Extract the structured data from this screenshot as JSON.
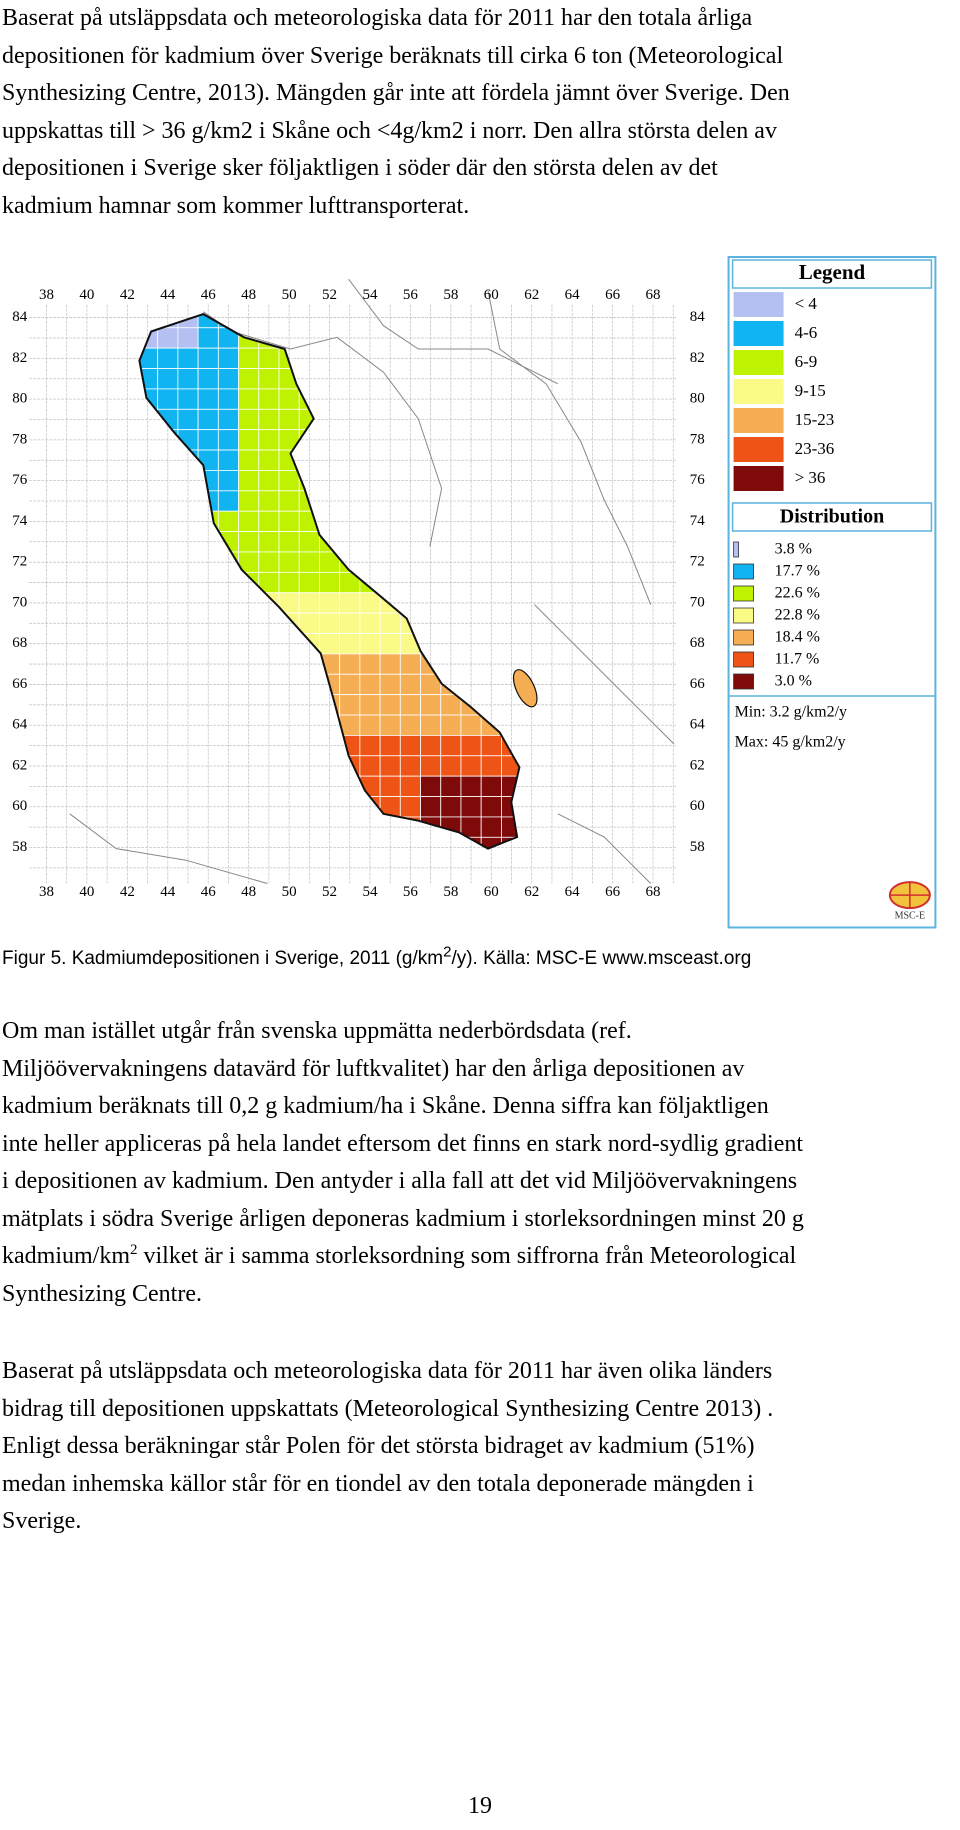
{
  "paragraphs": [
    {
      "lines": [
        "Baserat på utsläppsdata och meteorologiska data för 2011 har den totala årliga",
        "depositionen för kadmium över Sverige beräknats till cirka 6 ton (Meteorological",
        "Synthesizing Centre, 2013). Mängden går inte att fördela jämnt över Sverige. Den",
        "uppskattas till > 36 g/km2 i Skåne och <4g/km2 i norr. Den allra största delen av",
        "depositionen i Sverige sker följaktligen i söder där den största delen av det",
        "kadmium hamnar som kommer lufttransporterat."
      ]
    },
    {
      "lines": [
        "Om man istället utgår från svenska uppmätta nederbördsdata (ref.",
        "Miljöövervakningens datavärd för luftkvalitet) har den årliga depositionen av",
        "kadmium beräknats till 0,2 g kadmium/ha i Skåne. Denna siffra kan följaktligen",
        "inte heller appliceras på hela landet eftersom det finns en stark nord-sydlig gradient",
        "i depositionen av kadmium. Den antyder i alla fall att det vid Miljöövervakningens",
        "mätplats i södra Sverige årligen deponeras kadmium i storleksordningen minst 20 g",
        {
          "before": "kadmium/km",
          "sup": "2",
          "after": " vilket är i samma storleksordning som siffrorna från Meteorological"
        },
        "Synthesizing Centre."
      ]
    },
    {
      "lines": [
        "Baserat på utsläppsdata och meteorologiska data för 2011 har även olika länders",
        "bidrag till depositionen uppskattats (Meteorological Synthesizing Centre 2013) .",
        "Enligt dessa beräkningar står Polen för det största bidraget av kadmium (51%)",
        "medan inhemska källor står för en tiondel av den totala deponerade mängden i",
        "Sverige."
      ]
    }
  ],
  "figure": {
    "x_labels": [
      38,
      40,
      42,
      44,
      46,
      48,
      50,
      52,
      54,
      56,
      58,
      60,
      62,
      64,
      66,
      68
    ],
    "y_labels": [
      84,
      82,
      80,
      78,
      76,
      74,
      72,
      70,
      68,
      66,
      64,
      62,
      60,
      58
    ],
    "legend_title": "Legend",
    "legend": [
      {
        "label": "< 4",
        "color": "#b4bff2"
      },
      {
        "label": "4-6",
        "color": "#10b4f0"
      },
      {
        "label": "6-9",
        "color": "#bff200"
      },
      {
        "label": "9-15",
        "color": "#fafa86"
      },
      {
        "label": "15-23",
        "color": "#f6ae55"
      },
      {
        "label": "23-36",
        "color": "#ee5415"
      },
      {
        "label": "> 36",
        "color": "#7e0a0a"
      }
    ],
    "distribution_title": "Distribution",
    "distribution": [
      "3.8 %",
      "17.7 %",
      "22.6 %",
      "22.8 %",
      "18.4 %",
      "11.7 %",
      "3.0 %"
    ],
    "min": "Min: 3.2 g/km2/y",
    "max": "Max: 45 g/km2/y",
    "logo": "MSC-E"
  },
  "caption": {
    "before": "Figur 5. Kadmiumdepositionen i Sverige, 2011 (g/km",
    "sup": "2",
    "after": "/y). Källa: MSC-E www.msceast.org"
  },
  "page_number": "19"
}
